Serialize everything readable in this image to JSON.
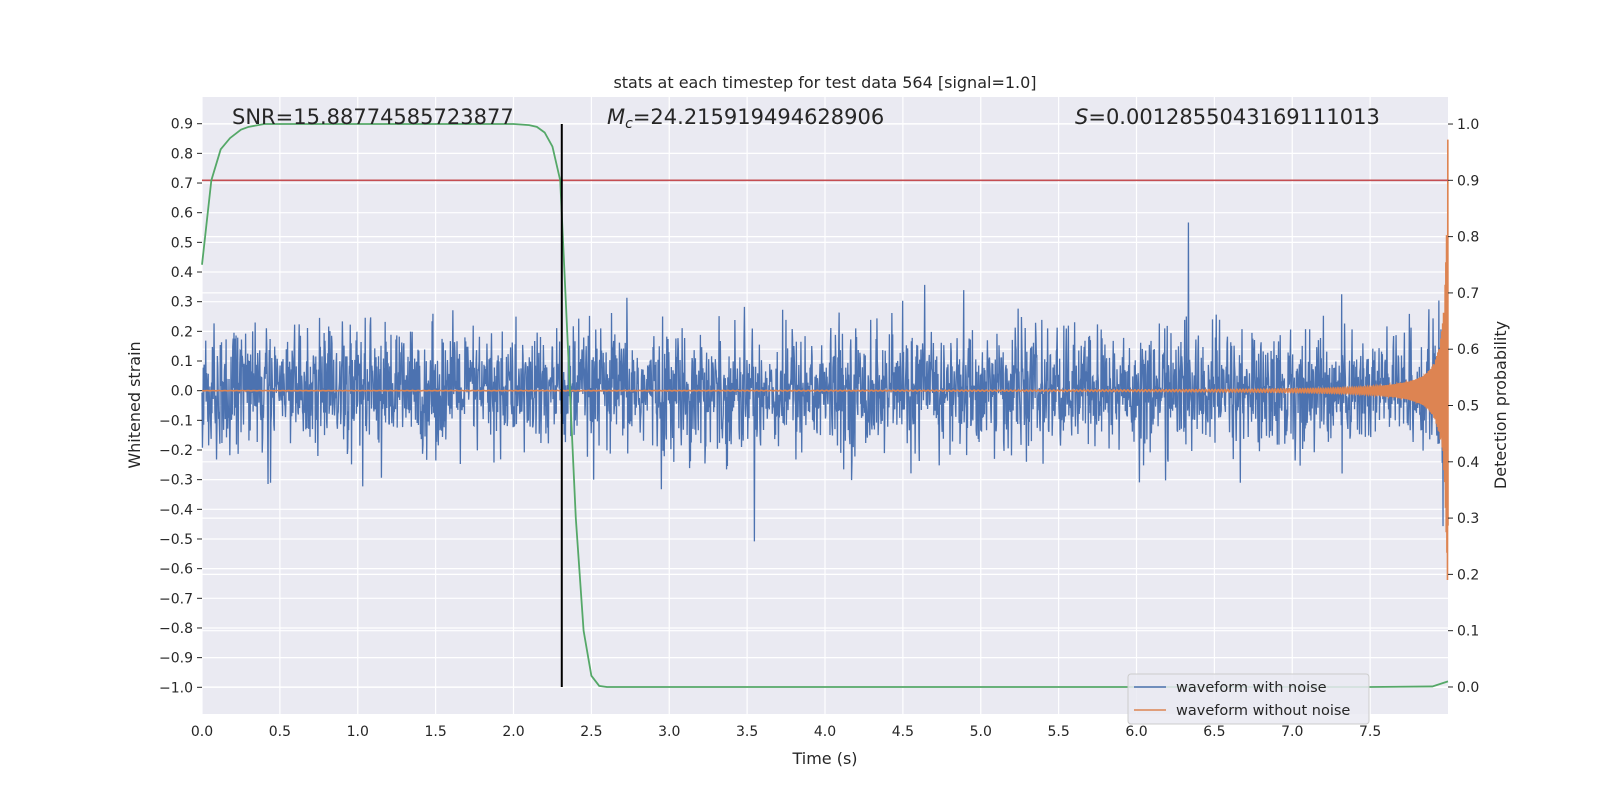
{
  "chart_data": {
    "type": "line",
    "title": "stats at each timestep for test data 564 [signal=1.0]",
    "xlabel": "Time (s)",
    "ylabel_left": "Whitened strain",
    "ylabel_right": "Detection probability",
    "xlim": [
      0,
      8
    ],
    "ylim_left": [
      -1.09,
      0.99
    ],
    "ylim_right": [
      -0.048,
      1.048
    ],
    "x_ticks": [
      "0.0",
      "0.5",
      "1.0",
      "1.5",
      "2.0",
      "2.5",
      "3.0",
      "3.5",
      "4.0",
      "4.5",
      "5.0",
      "5.5",
      "6.0",
      "6.5",
      "7.0",
      "7.5"
    ],
    "y_ticks_left": [
      "0.9",
      "0.8",
      "0.7",
      "0.6",
      "0.5",
      "0.4",
      "0.3",
      "0.2",
      "0.1",
      "0.0",
      "−0.1",
      "−0.2",
      "−0.3",
      "−0.4",
      "−0.5",
      "−0.6",
      "−0.7",
      "−0.8",
      "−0.9",
      "−1.0"
    ],
    "y_ticks_right": [
      "1.0",
      "0.9",
      "0.8",
      "0.7",
      "0.6",
      "0.5",
      "0.4",
      "0.3",
      "0.2",
      "0.1",
      "0.0"
    ],
    "grid": true,
    "legend_position": "lower-right",
    "annotations": {
      "snr": "SNR=15.88774585723877",
      "mc_symbol": "M",
      "mc_sub": "c",
      "mc_value": "=24.215919494628906",
      "s_symbol": "S",
      "s_value": "=0.0012855043169111013"
    },
    "series": [
      {
        "name": "waveform with noise",
        "axis": "left",
        "color": "#4c72b0",
        "kind": "noise",
        "amplitude_std": 0.1,
        "duration": 8.0
      },
      {
        "name": "waveform without noise",
        "axis": "left",
        "color": "#dd8452",
        "kind": "chirp",
        "merger_time": 8.0,
        "peak_amplitude": 0.9
      },
      {
        "axis": "right",
        "color": "#55a868",
        "x": [
          0.0,
          0.06,
          0.12,
          0.18,
          0.25,
          0.3,
          0.4,
          0.5,
          1.0,
          1.5,
          2.0,
          2.1,
          2.15,
          2.2,
          2.25,
          2.3,
          2.35,
          2.4,
          2.45,
          2.5,
          2.55,
          2.6,
          3.0,
          7.5,
          7.9,
          8.0
        ],
        "y": [
          0.75,
          0.9,
          0.955,
          0.975,
          0.99,
          0.995,
          1.0,
          1.0,
          1.0,
          1.0,
          1.0,
          0.998,
          0.995,
          0.985,
          0.96,
          0.9,
          0.6,
          0.3,
          0.1,
          0.02,
          0.002,
          0.0,
          0.0,
          0.0,
          0.001,
          0.01
        ]
      }
    ],
    "threshold": {
      "axis": "right",
      "value": 0.9,
      "color": "#c44e52"
    },
    "detection_time": {
      "x": 2.31,
      "color": "#000000"
    }
  }
}
